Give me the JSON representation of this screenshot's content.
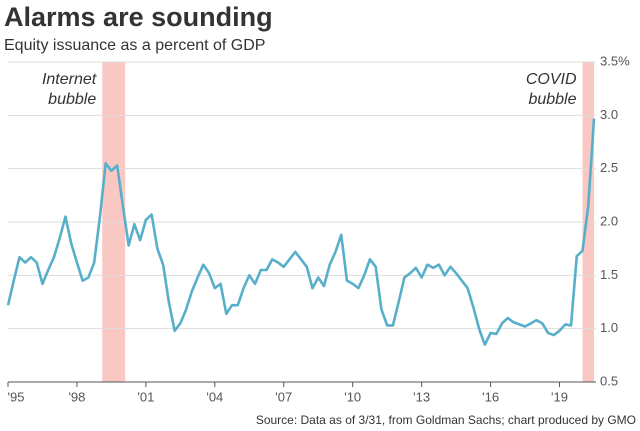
{
  "chart_data": {
    "type": "line",
    "title": "Alarms are sounding",
    "subtitle": "Equity issuance as a percent of GDP",
    "source": "Source: Data as of 3/31, from Goldman Sachs; chart produced by GMO",
    "x": [
      1995,
      1995.25,
      1995.5,
      1995.75,
      1996,
      1996.25,
      1996.5,
      1996.75,
      1997,
      1997.25,
      1997.5,
      1997.75,
      1998,
      1998.25,
      1998.5,
      1998.75,
      1999,
      1999.25,
      1999.5,
      1999.75,
      2000,
      2000.25,
      2000.5,
      2000.75,
      2001,
      2001.25,
      2001.5,
      2001.75,
      2002,
      2002.25,
      2002.5,
      2002.75,
      2003,
      2003.25,
      2003.5,
      2003.75,
      2004,
      2004.25,
      2004.5,
      2004.75,
      2005,
      2005.25,
      2005.5,
      2005.75,
      2006,
      2006.25,
      2006.5,
      2006.75,
      2007,
      2007.25,
      2007.5,
      2007.75,
      2008,
      2008.25,
      2008.5,
      2008.75,
      2009,
      2009.25,
      2009.5,
      2009.75,
      2010,
      2010.25,
      2010.5,
      2010.75,
      2011,
      2011.25,
      2011.5,
      2011.75,
      2012,
      2012.25,
      2012.5,
      2012.75,
      2013,
      2013.25,
      2013.5,
      2013.75,
      2014,
      2014.25,
      2014.5,
      2014.75,
      2015,
      2015.25,
      2015.5,
      2015.75,
      2016,
      2016.25,
      2016.5,
      2016.75,
      2017,
      2017.25,
      2017.5,
      2017.75,
      2018,
      2018.25,
      2018.5,
      2018.75,
      2019,
      2019.25,
      2019.5,
      2019.75,
      2020,
      2020.25,
      2020.5
    ],
    "series": [
      {
        "name": "Equity issuance",
        "color": "#58afc9",
        "values": [
          1.22,
          1.45,
          1.67,
          1.62,
          1.67,
          1.62,
          1.42,
          1.55,
          1.67,
          1.85,
          2.05,
          1.8,
          1.62,
          1.45,
          1.48,
          1.62,
          2.05,
          2.55,
          2.48,
          2.53,
          2.15,
          1.78,
          1.98,
          1.83,
          2.02,
          2.07,
          1.75,
          1.6,
          1.25,
          0.98,
          1.05,
          1.18,
          1.35,
          1.48,
          1.6,
          1.52,
          1.38,
          1.42,
          1.14,
          1.22,
          1.22,
          1.38,
          1.5,
          1.42,
          1.55,
          1.55,
          1.65,
          1.62,
          1.58,
          1.65,
          1.72,
          1.65,
          1.58,
          1.38,
          1.48,
          1.4,
          1.6,
          1.72,
          1.88,
          1.45,
          1.42,
          1.38,
          1.5,
          1.65,
          1.58,
          1.18,
          1.03,
          1.03,
          1.25,
          1.48,
          1.52,
          1.57,
          1.48,
          1.6,
          1.57,
          1.6,
          1.5,
          1.58,
          1.52,
          1.45,
          1.38,
          1.2,
          1.0,
          0.85,
          0.96,
          0.95,
          1.05,
          1.1,
          1.06,
          1.04,
          1.02,
          1.05,
          1.08,
          1.05,
          0.96,
          0.94,
          0.98,
          1.04,
          1.03,
          1.68,
          1.73,
          2.15,
          2.97
        ]
      }
    ],
    "xlim": [
      1995,
      2020.5
    ],
    "xticks": [
      {
        "value": 1995,
        "label": "'95"
      },
      {
        "value": 1998,
        "label": "'98"
      },
      {
        "value": 2001,
        "label": "'01"
      },
      {
        "value": 2004,
        "label": "'04"
      },
      {
        "value": 2007,
        "label": "'07"
      },
      {
        "value": 2010,
        "label": "'10"
      },
      {
        "value": 2013,
        "label": "'13"
      },
      {
        "value": 2016,
        "label": "'16"
      },
      {
        "value": 2019,
        "label": "'19"
      }
    ],
    "ylim": [
      0.5,
      3.5
    ],
    "yticks": [
      0.5,
      {
        "value": 1,
        "label": "1.0"
      },
      1.5,
      {
        "value": 2,
        "label": "2.0"
      },
      2.5,
      {
        "value": 3,
        "label": "3.0"
      },
      {
        "value": 3.5,
        "label": "3.5%"
      }
    ],
    "grid": true,
    "shaded_regions": [
      {
        "lines": [
          "Internet",
          "bubble"
        ],
        "start": 1999.1,
        "end": 2000.1,
        "color": "#f9c8c3"
      },
      {
        "lines": [
          "COVID",
          "bubble"
        ],
        "start": 2020,
        "end": 2020.5,
        "color": "#f9c8c3"
      }
    ]
  }
}
